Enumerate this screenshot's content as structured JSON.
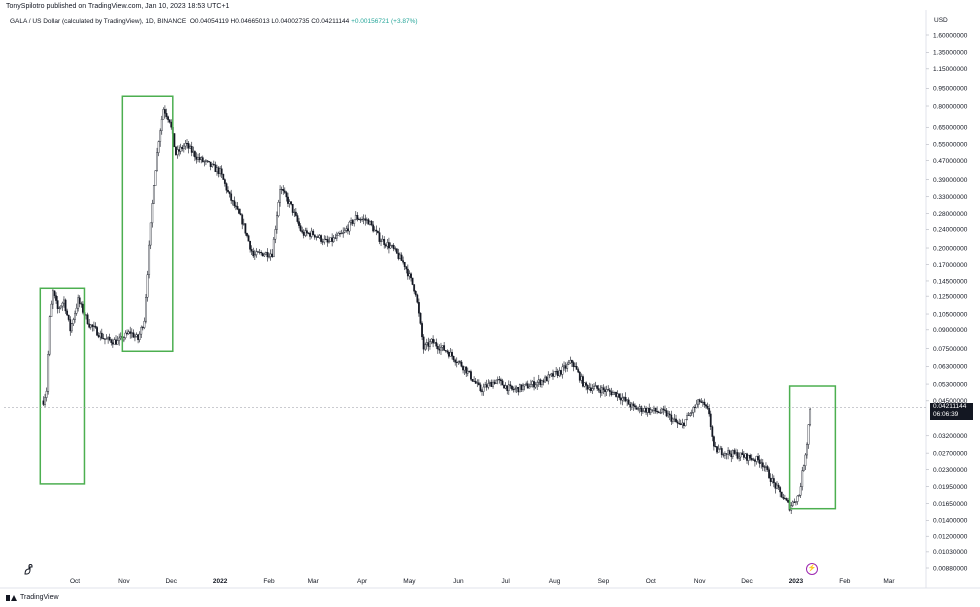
{
  "publisher_line": "TonySpilotro published on TradingView.com, Jan 10, 2023 18:53 UTC+1",
  "legend": {
    "symbol": "GALA / US Dollar (calculated by TradingView), 1D, BINANCE",
    "open": "O0.04054119",
    "high": "H0.04665013",
    "low": "L0.04002735",
    "close": "C0.04211144",
    "change": "+0.00156721 (+3.87%)"
  },
  "footer": {
    "brand": "TradingView"
  },
  "colors": {
    "candles": "#131722",
    "boxes": "#4caf50",
    "current_line": "#131722",
    "event_icon": "#9c27b0"
  },
  "price_tag": {
    "price": "0.04211144",
    "countdown": "06:06:39"
  },
  "chart_data": {
    "type": "candlestick",
    "symbol": "GALA / US Dollar",
    "interval": "1D",
    "exchange": "BINANCE",
    "currency": "USD",
    "scale": "log",
    "y_ticks": [
      1.6,
      1.35,
      1.15,
      0.95,
      0.8,
      0.65,
      0.55,
      0.47,
      0.39,
      0.33,
      0.28,
      0.24,
      0.2,
      0.17,
      0.145,
      0.125,
      0.105,
      0.09,
      0.075,
      0.063,
      0.053,
      0.045,
      0.032,
      0.027,
      0.023,
      0.0195,
      0.0165,
      0.014,
      0.012,
      0.0103,
      0.0088
    ],
    "y_tick_labels": [
      "1.60000000",
      "1.35000000",
      "1.15000000",
      "0.95000000",
      "0.80000000",
      "0.65000000",
      "0.55000000",
      "0.47000000",
      "0.39000000",
      "0.33000000",
      "0.28000000",
      "0.24000000",
      "0.20000000",
      "0.17000000",
      "0.14500000",
      "0.12500000",
      "0.10500000",
      "0.09000000",
      "0.07500000",
      "0.06300000",
      "0.05300000",
      "0.04500000",
      "0.03200000",
      "0.02700000",
      "0.02300000",
      "0.01950000",
      "0.01650000",
      "0.01400000",
      "0.01200000",
      "0.01030000",
      "0.00880000"
    ],
    "x_ticks": [
      {
        "label": "Oct",
        "date": "2021-10-01",
        "bold": false
      },
      {
        "label": "Nov",
        "date": "2021-11-01",
        "bold": false
      },
      {
        "label": "Dec",
        "date": "2021-12-01",
        "bold": false
      },
      {
        "label": "2022",
        "date": "2022-01-01",
        "bold": true
      },
      {
        "label": "Feb",
        "date": "2022-02-01",
        "bold": false
      },
      {
        "label": "Mar",
        "date": "2022-03-01",
        "bold": false
      },
      {
        "label": "Apr",
        "date": "2022-04-01",
        "bold": false
      },
      {
        "label": "May",
        "date": "2022-05-01",
        "bold": false
      },
      {
        "label": "Jun",
        "date": "2022-06-01",
        "bold": false
      },
      {
        "label": "Jul",
        "date": "2022-07-01",
        "bold": false
      },
      {
        "label": "Aug",
        "date": "2022-08-01",
        "bold": false
      },
      {
        "label": "Sep",
        "date": "2022-09-01",
        "bold": false
      },
      {
        "label": "Oct",
        "date": "2022-10-01",
        "bold": false
      },
      {
        "label": "Nov",
        "date": "2022-11-01",
        "bold": false
      },
      {
        "label": "Dec",
        "date": "2022-12-01",
        "bold": false
      },
      {
        "label": "2023",
        "date": "2023-01-01",
        "bold": true
      },
      {
        "label": "Feb",
        "date": "2023-02-01",
        "bold": false
      },
      {
        "label": "Mar",
        "date": "2023-03-01",
        "bold": false
      }
    ],
    "price_path": [
      {
        "date": "2021-09-11",
        "close": 0.045
      },
      {
        "date": "2021-09-13",
        "close": 0.05
      },
      {
        "date": "2021-09-15",
        "close": 0.1
      },
      {
        "date": "2021-09-17",
        "close": 0.13
      },
      {
        "date": "2021-09-20",
        "close": 0.11
      },
      {
        "date": "2021-09-24",
        "close": 0.12
      },
      {
        "date": "2021-09-28",
        "close": 0.09
      },
      {
        "date": "2021-10-03",
        "close": 0.12
      },
      {
        "date": "2021-10-10",
        "close": 0.095
      },
      {
        "date": "2021-10-20",
        "close": 0.082
      },
      {
        "date": "2021-10-28",
        "close": 0.08
      },
      {
        "date": "2021-11-05",
        "close": 0.088
      },
      {
        "date": "2021-11-10",
        "close": 0.082
      },
      {
        "date": "2021-11-14",
        "close": 0.1
      },
      {
        "date": "2021-11-17",
        "close": 0.2
      },
      {
        "date": "2021-11-20",
        "close": 0.38
      },
      {
        "date": "2021-11-23",
        "close": 0.58
      },
      {
        "date": "2021-11-26",
        "close": 0.78
      },
      {
        "date": "2021-11-30",
        "close": 0.7
      },
      {
        "date": "2021-12-04",
        "close": 0.5
      },
      {
        "date": "2021-12-10",
        "close": 0.55
      },
      {
        "date": "2021-12-18",
        "close": 0.48
      },
      {
        "date": "2021-12-25",
        "close": 0.45
      },
      {
        "date": "2022-01-01",
        "close": 0.42
      },
      {
        "date": "2022-01-07",
        "close": 0.33
      },
      {
        "date": "2022-01-15",
        "close": 0.26
      },
      {
        "date": "2022-01-22",
        "close": 0.185
      },
      {
        "date": "2022-01-27",
        "close": 0.19
      },
      {
        "date": "2022-02-03",
        "close": 0.19
      },
      {
        "date": "2022-02-08",
        "close": 0.36
      },
      {
        "date": "2022-02-15",
        "close": 0.3
      },
      {
        "date": "2022-02-22",
        "close": 0.23
      },
      {
        "date": "2022-03-01",
        "close": 0.23
      },
      {
        "date": "2022-03-10",
        "close": 0.21
      },
      {
        "date": "2022-03-20",
        "close": 0.23
      },
      {
        "date": "2022-03-28",
        "close": 0.27
      },
      {
        "date": "2022-04-05",
        "close": 0.26
      },
      {
        "date": "2022-04-12",
        "close": 0.22
      },
      {
        "date": "2022-04-20",
        "close": 0.2
      },
      {
        "date": "2022-04-28",
        "close": 0.17
      },
      {
        "date": "2022-05-05",
        "close": 0.13
      },
      {
        "date": "2022-05-10",
        "close": 0.075
      },
      {
        "date": "2022-05-15",
        "close": 0.08
      },
      {
        "date": "2022-05-25",
        "close": 0.073
      },
      {
        "date": "2022-06-05",
        "close": 0.062
      },
      {
        "date": "2022-06-15",
        "close": 0.05
      },
      {
        "date": "2022-06-25",
        "close": 0.055
      },
      {
        "date": "2022-07-05",
        "close": 0.05
      },
      {
        "date": "2022-07-15",
        "close": 0.052
      },
      {
        "date": "2022-07-25",
        "close": 0.055
      },
      {
        "date": "2022-08-05",
        "close": 0.06
      },
      {
        "date": "2022-08-12",
        "close": 0.066
      },
      {
        "date": "2022-08-20",
        "close": 0.052
      },
      {
        "date": "2022-09-01",
        "close": 0.05
      },
      {
        "date": "2022-09-10",
        "close": 0.048
      },
      {
        "date": "2022-09-20",
        "close": 0.042
      },
      {
        "date": "2022-10-01",
        "close": 0.041
      },
      {
        "date": "2022-10-10",
        "close": 0.04
      },
      {
        "date": "2022-10-20",
        "close": 0.035
      },
      {
        "date": "2022-11-01",
        "close": 0.045
      },
      {
        "date": "2022-11-07",
        "close": 0.04
      },
      {
        "date": "2022-11-10",
        "close": 0.028
      },
      {
        "date": "2022-11-20",
        "close": 0.027
      },
      {
        "date": "2022-12-01",
        "close": 0.026
      },
      {
        "date": "2022-12-10",
        "close": 0.025
      },
      {
        "date": "2022-12-18",
        "close": 0.02
      },
      {
        "date": "2022-12-28",
        "close": 0.016
      },
      {
        "date": "2023-01-03",
        "close": 0.018
      },
      {
        "date": "2023-01-08",
        "close": 0.03
      },
      {
        "date": "2023-01-10",
        "close": 0.0421
      }
    ],
    "highlight_boxes": [
      {
        "start": "2021-09-09",
        "end": "2021-10-07",
        "high": 0.135,
        "low": 0.02
      },
      {
        "start": "2021-10-31",
        "end": "2021-12-02",
        "high": 0.88,
        "low": 0.073
      },
      {
        "start": "2022-12-28",
        "end": "2023-01-26",
        "high": 0.052,
        "low": 0.0157
      }
    ],
    "current_price": 0.04211144
  }
}
